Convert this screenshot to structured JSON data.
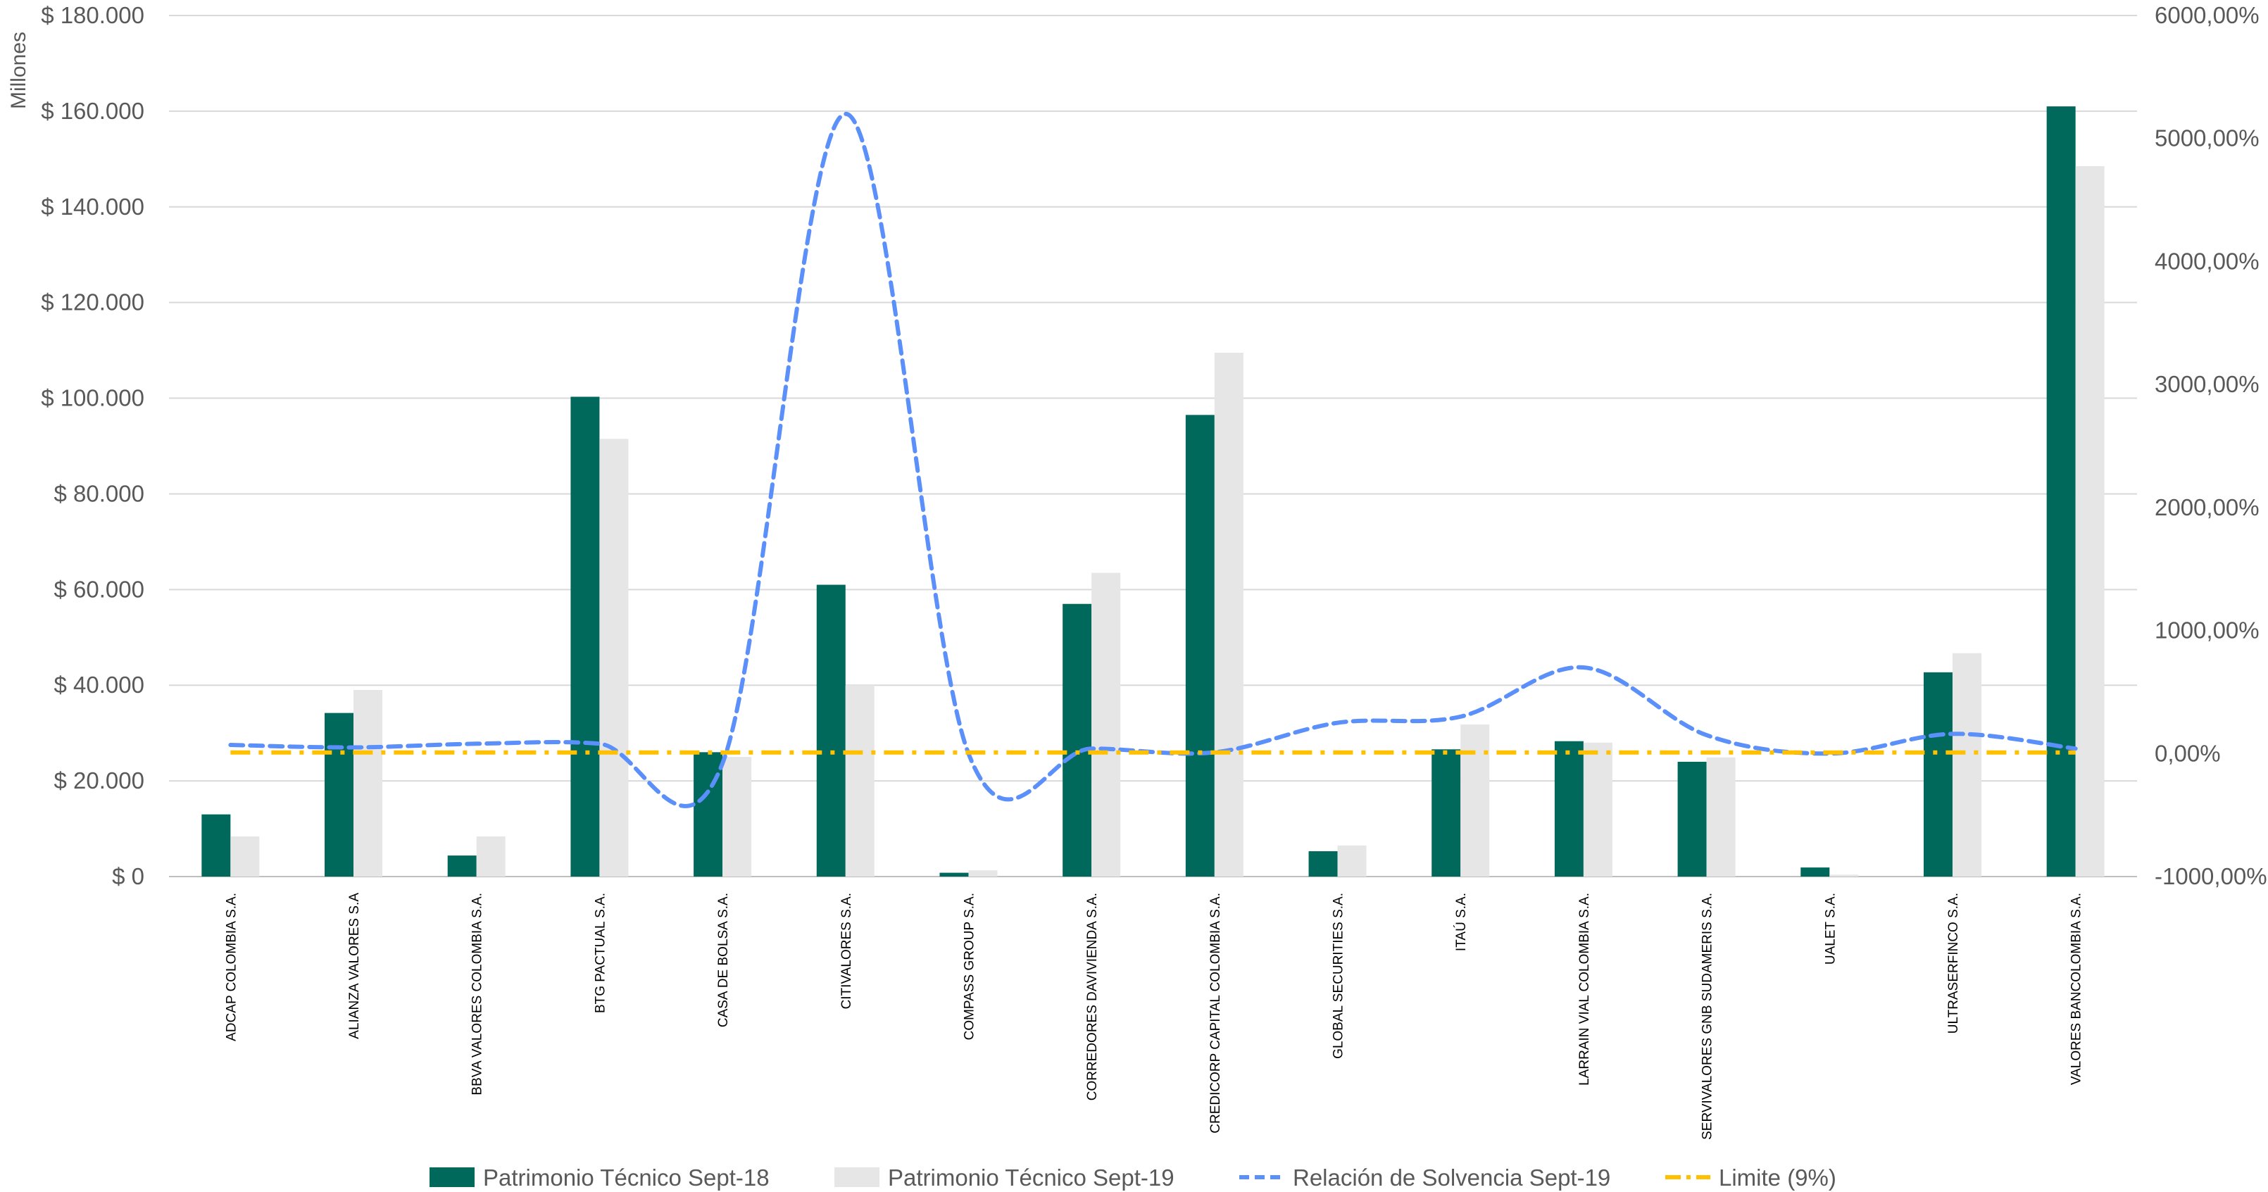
{
  "chart_data": {
    "type": "bar",
    "categories": [
      "ADCAP COLOMBIA S.A.",
      "ALIANZA VALORES S.A",
      "BBVA VALORES COLOMBIA S.A.",
      "BTG PACTUAL S.A.",
      "CASA DE BOLSA S.A.",
      "CITIVALORES S.A.",
      "COMPASS GROUP S.A.",
      "CORREDORES DAVIVIENDA S.A.",
      "CREDICORP CAPITAL COLOMBIA S.A.",
      "GLOBAL SECURITIES S.A.",
      "ITAÚ S.A.",
      "LARRAIN VIAL COLOMBIA S.A.",
      "SERVIVALORES GNB SUDAMERIS S.A.",
      "UALET S.A.",
      "ULTRASERFINCO S.A.",
      "VALORES BANCOLOMBIA S.A."
    ],
    "series": [
      {
        "name": "Patrimonio Técnico Sept-18",
        "type": "bar",
        "axis": "left",
        "color": "#00695c",
        "values": [
          13000,
          34200,
          4400,
          100300,
          26000,
          61000,
          800,
          57000,
          96500,
          5300,
          26600,
          28300,
          24000,
          1900,
          42700,
          161000
        ]
      },
      {
        "name": "Patrimonio Técnico Sept-19",
        "type": "bar",
        "axis": "left",
        "color": "#e6e6e6",
        "values": [
          8400,
          39000,
          8400,
          91500,
          25000,
          40000,
          1300,
          63500,
          109500,
          6500,
          31800,
          28000,
          24900,
          400,
          46700,
          148500
        ]
      },
      {
        "name": "Relación de Solvencia Sept-19",
        "type": "line",
        "style": "dashed",
        "smooth": true,
        "axis": "right",
        "color": "#5b8ff9",
        "values": [
          70,
          50,
          80,
          80,
          -80,
          5200,
          0,
          40,
          10,
          250,
          300,
          700,
          150,
          0,
          160,
          40
        ]
      },
      {
        "name": "Limite (9%)",
        "type": "line",
        "style": "dash-dot",
        "axis": "right",
        "color": "#ffc000",
        "values": [
          9,
          9,
          9,
          9,
          9,
          9,
          9,
          9,
          9,
          9,
          9,
          9,
          9,
          9,
          9,
          9
        ]
      }
    ],
    "y_left": {
      "label": "Millones",
      "ylim": [
        0,
        180000
      ],
      "ticks": [
        "$ 0",
        "$ 20.000",
        "$ 40.000",
        "$ 60.000",
        "$ 80.000",
        "$ 100.000",
        "$ 120.000",
        "$ 140.000",
        "$ 160.000",
        "$ 180.000"
      ]
    },
    "y_right": {
      "ylim": [
        -1000,
        6000
      ],
      "ticks": [
        "-1000,00%",
        "0,00%",
        "1000,00%",
        "2000,00%",
        "3000,00%",
        "4000,00%",
        "5000,00%",
        "6000,00%"
      ]
    },
    "grid": true,
    "legend_position": "bottom"
  }
}
